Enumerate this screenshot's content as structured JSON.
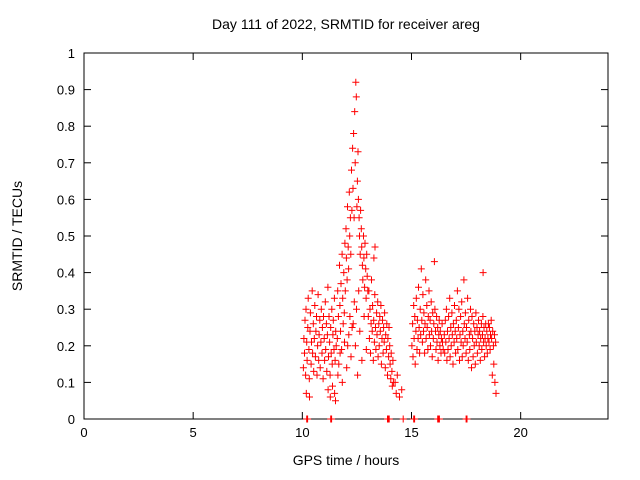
{
  "chart_data": {
    "type": "scatter",
    "title": "Day 111 of 2022, SRMTID for receiver areg",
    "xlabel": "GPS time / hours",
    "ylabel": "SRMTID / TECUs",
    "xlim": [
      0,
      24
    ],
    "ylim": [
      0,
      1
    ],
    "xticks": [
      0,
      5,
      10,
      15,
      20
    ],
    "yticks": [
      0,
      0.1,
      0.2,
      0.3,
      0.4,
      0.5,
      0.6,
      0.7,
      0.8,
      0.9,
      1
    ],
    "grid": false,
    "legend": "none",
    "marker": "plus",
    "color": "#ff0000",
    "points": [
      [
        10.05,
        0.14
      ],
      [
        10.07,
        0.22
      ],
      [
        10.1,
        0.18
      ],
      [
        10.12,
        0.27
      ],
      [
        10.15,
        0.12
      ],
      [
        10.17,
        0.3
      ],
      [
        10.18,
        0.07
      ],
      [
        10.2,
        0.21
      ],
      [
        10.22,
        0.16
      ],
      [
        10.25,
        0.25
      ],
      [
        10.27,
        0.33
      ],
      [
        10.3,
        0.19
      ],
      [
        10.32,
        0.11
      ],
      [
        10.33,
        0.06
      ],
      [
        10.35,
        0.24
      ],
      [
        10.37,
        0.29
      ],
      [
        10.4,
        0.15
      ],
      [
        10.42,
        0.21
      ],
      [
        10.45,
        0.35
      ],
      [
        10.47,
        0.18
      ],
      [
        10.5,
        0.26
      ],
      [
        10.52,
        0.13
      ],
      [
        10.55,
        0.22
      ],
      [
        10.57,
        0.31
      ],
      [
        10.6,
        0.17
      ],
      [
        10.62,
        0.24
      ],
      [
        10.65,
        0.28
      ],
      [
        10.67,
        0.12
      ],
      [
        10.7,
        0.2
      ],
      [
        10.72,
        0.34
      ],
      [
        10.75,
        0.16
      ],
      [
        10.77,
        0.23
      ],
      [
        10.8,
        0.27
      ],
      [
        10.82,
        0.14
      ],
      [
        10.85,
        0.21
      ],
      [
        10.87,
        0.3
      ],
      [
        10.9,
        0.18
      ],
      [
        10.92,
        0.25
      ],
      [
        10.95,
        0.11
      ],
      [
        10.97,
        0.28
      ],
      [
        11,
        0.22
      ],
      [
        11.02,
        0.16
      ],
      [
        11.05,
        0.32
      ],
      [
        11.07,
        0.19
      ],
      [
        11.1,
        0.26
      ],
      [
        11.12,
        0.13
      ],
      [
        11.15,
        0.23
      ],
      [
        11.17,
        0.36
      ],
      [
        11.18,
        0.08
      ],
      [
        11.2,
        0.17
      ],
      [
        11.22,
        0.28
      ],
      [
        11.25,
        0.21
      ],
      [
        11.27,
        0.12
      ],
      [
        11.28,
        0.06
      ],
      [
        11.3,
        0.25
      ],
      [
        11.32,
        0.18
      ],
      [
        11.35,
        0.3
      ],
      [
        11.37,
        0.15
      ],
      [
        11.38,
        0.09
      ],
      [
        11.4,
        0.23
      ],
      [
        11.42,
        0.27
      ],
      [
        11.45,
        0.19
      ],
      [
        11.47,
        0.33
      ],
      [
        11.48,
        0.07
      ],
      [
        11.5,
        0.16
      ],
      [
        11.52,
        0.05
      ],
      [
        11.53,
        0.24
      ],
      [
        11.55,
        0.2
      ],
      [
        11.6,
        0.22
      ],
      [
        11.62,
        0.35
      ],
      [
        11.63,
        0.12
      ],
      [
        11.65,
        0.28
      ],
      [
        11.67,
        0.15
      ],
      [
        11.7,
        0.42
      ],
      [
        11.72,
        0.31
      ],
      [
        11.73,
        0.18
      ],
      [
        11.75,
        0.24
      ],
      [
        11.77,
        0.37
      ],
      [
        11.8,
        0.19
      ],
      [
        11.82,
        0.45
      ],
      [
        11.83,
        0.1
      ],
      [
        11.85,
        0.33
      ],
      [
        11.87,
        0.26
      ],
      [
        11.9,
        0.4
      ],
      [
        11.92,
        0.29
      ],
      [
        11.93,
        0.21
      ],
      [
        11.95,
        0.48
      ],
      [
        11.97,
        0.35
      ],
      [
        12,
        0.52
      ],
      [
        12.02,
        0.44
      ],
      [
        12.03,
        0.14
      ],
      [
        12.05,
        0.38
      ],
      [
        12.07,
        0.58
      ],
      [
        12.08,
        0.2
      ],
      [
        12.1,
        0.47
      ],
      [
        12.12,
        0.41
      ],
      [
        12.13,
        0.23
      ],
      [
        12.15,
        0.62
      ],
      [
        12.17,
        0.5
      ],
      [
        12.18,
        0.28
      ],
      [
        12.2,
        0.55
      ],
      [
        12.22,
        0.45
      ],
      [
        12.23,
        0.17
      ],
      [
        12.25,
        0.68
      ],
      [
        12.27,
        0.57
      ],
      [
        12.28,
        0.25
      ],
      [
        12.3,
        0.74
      ],
      [
        12.32,
        0.63
      ],
      [
        12.33,
        0.26
      ],
      [
        12.35,
        0.78
      ],
      [
        12.37,
        0.55
      ],
      [
        12.38,
        0.32
      ],
      [
        12.4,
        0.84
      ],
      [
        12.42,
        0.7
      ],
      [
        12.43,
        0.2
      ],
      [
        12.45,
        0.92
      ],
      [
        12.47,
        0.88
      ],
      [
        12.48,
        0.3
      ],
      [
        12.5,
        0.58
      ],
      [
        12.52,
        0.65
      ],
      [
        12.53,
        0.12
      ],
      [
        12.55,
        0.73
      ],
      [
        12.57,
        0.6
      ],
      [
        12.58,
        0.35
      ],
      [
        12.6,
        0.55
      ],
      [
        12.62,
        0.5
      ],
      [
        12.63,
        0.24
      ],
      [
        12.65,
        0.45
      ],
      [
        12.67,
        0.57
      ],
      [
        12.7,
        0.52
      ],
      [
        12.72,
        0.47
      ],
      [
        12.73,
        0.16
      ],
      [
        12.75,
        0.42
      ],
      [
        12.77,
        0.38
      ],
      [
        12.8,
        0.5
      ],
      [
        12.82,
        0.44
      ],
      [
        12.83,
        0.28
      ],
      [
        12.85,
        0.36
      ],
      [
        12.87,
        0.48
      ],
      [
        12.9,
        0.41
      ],
      [
        12.92,
        0.33
      ],
      [
        12.93,
        0.19
      ],
      [
        12.95,
        0.45
      ],
      [
        12.97,
        0.39
      ],
      [
        13,
        0.35
      ],
      [
        13.02,
        0.28
      ],
      [
        13.05,
        0.35
      ],
      [
        13.07,
        0.22
      ],
      [
        13.1,
        0.3
      ],
      [
        13.12,
        0.18
      ],
      [
        13.15,
        0.26
      ],
      [
        13.17,
        0.38
      ],
      [
        13.2,
        0.24
      ],
      [
        13.22,
        0.31
      ],
      [
        13.25,
        0.16
      ],
      [
        13.27,
        0.27
      ],
      [
        13.28,
        0.44
      ],
      [
        13.3,
        0.21
      ],
      [
        13.32,
        0.34
      ],
      [
        13.33,
        0.47
      ],
      [
        13.35,
        0.25
      ],
      [
        13.37,
        0.19
      ],
      [
        13.4,
        0.29
      ],
      [
        13.42,
        0.23
      ],
      [
        13.45,
        0.32
      ],
      [
        13.47,
        0.17
      ],
      [
        13.5,
        0.26
      ],
      [
        13.52,
        0.2
      ],
      [
        13.55,
        0.28
      ],
      [
        13.57,
        0.24
      ],
      [
        13.6,
        0.31
      ],
      [
        13.62,
        0.15
      ],
      [
        13.65,
        0.22
      ],
      [
        13.67,
        0.27
      ],
      [
        13.7,
        0.18
      ],
      [
        13.72,
        0.25
      ],
      [
        13.75,
        0.21
      ],
      [
        13.77,
        0.29
      ],
      [
        13.8,
        0.14
      ],
      [
        13.82,
        0.23
      ],
      [
        13.85,
        0.19
      ],
      [
        13.87,
        0.26
      ],
      [
        13.9,
        0.12
      ],
      [
        13.92,
        0.22
      ],
      [
        13.95,
        0.17
      ],
      [
        13.97,
        0.25
      ],
      [
        14,
        0.2
      ],
      [
        14.02,
        0.15
      ],
      [
        14.05,
        0.11
      ],
      [
        14.07,
        0.18
      ],
      [
        14.1,
        0.13
      ],
      [
        14.12,
        0.09
      ],
      [
        14.15,
        0.16
      ],
      [
        14.17,
        0.1
      ],
      [
        14.25,
        0.1
      ],
      [
        14.3,
        0.07
      ],
      [
        14.35,
        0.12
      ],
      [
        14.45,
        0.06
      ],
      [
        14.55,
        0.08
      ],
      [
        15.02,
        0.2
      ],
      [
        15.05,
        0.26
      ],
      [
        15.07,
        0.17
      ],
      [
        15.1,
        0.31
      ],
      [
        15.12,
        0.22
      ],
      [
        15.15,
        0.28
      ],
      [
        15.17,
        0.15
      ],
      [
        15.2,
        0.24
      ],
      [
        15.22,
        0.33
      ],
      [
        15.25,
        0.19
      ],
      [
        15.27,
        0.27
      ],
      [
        15.3,
        0.22
      ],
      [
        15.32,
        0.36
      ],
      [
        15.35,
        0.25
      ],
      [
        15.37,
        0.18
      ],
      [
        15.4,
        0.3
      ],
      [
        15.42,
        0.23
      ],
      [
        15.45,
        0.41
      ],
      [
        15.47,
        0.27
      ],
      [
        15.5,
        0.21
      ],
      [
        15.52,
        0.34
      ],
      [
        15.55,
        0.24
      ],
      [
        15.57,
        0.29
      ],
      [
        15.6,
        0.18
      ],
      [
        15.62,
        0.26
      ],
      [
        15.65,
        0.38
      ],
      [
        15.67,
        0.22
      ],
      [
        15.7,
        0.31
      ],
      [
        15.72,
        0.25
      ],
      [
        15.75,
        0.19
      ],
      [
        15.77,
        0.28
      ],
      [
        15.8,
        0.35
      ],
      [
        15.82,
        0.23
      ],
      [
        15.85,
        0.27
      ],
      [
        15.87,
        0.2
      ],
      [
        15.9,
        0.32
      ],
      [
        15.92,
        0.24
      ],
      [
        15.95,
        0.17
      ],
      [
        15.97,
        0.29
      ],
      [
        16,
        0.22
      ],
      [
        16.02,
        0.26
      ],
      [
        16.05,
        0.43
      ],
      [
        16.07,
        0.3
      ],
      [
        16.1,
        0.24
      ],
      [
        16.12,
        0.19
      ],
      [
        16.15,
        0.28
      ],
      [
        16.17,
        0.21
      ],
      [
        16.2,
        0.25
      ],
      [
        16.22,
        0.16
      ],
      [
        16.25,
        0.23
      ],
      [
        16.27,
        0.27
      ],
      [
        16.3,
        0.2
      ],
      [
        16.32,
        0.24
      ],
      [
        16.35,
        0.18
      ],
      [
        16.37,
        0.22
      ],
      [
        16.4,
        0.26
      ],
      [
        16.42,
        0.21
      ],
      [
        16.45,
        0.19
      ],
      [
        16.5,
        0.23
      ],
      [
        16.52,
        0.18
      ],
      [
        16.55,
        0.27
      ],
      [
        16.57,
        0.21
      ],
      [
        16.6,
        0.3
      ],
      [
        16.62,
        0.16
      ],
      [
        16.65,
        0.24
      ],
      [
        16.67,
        0.19
      ],
      [
        16.7,
        0.28
      ],
      [
        16.72,
        0.22
      ],
      [
        16.75,
        0.33
      ],
      [
        16.77,
        0.17
      ],
      [
        16.8,
        0.25
      ],
      [
        16.82,
        0.2
      ],
      [
        16.85,
        0.29
      ],
      [
        16.87,
        0.23
      ],
      [
        16.9,
        0.15
      ],
      [
        16.92,
        0.26
      ],
      [
        16.95,
        0.21
      ],
      [
        16.97,
        0.31
      ],
      [
        17,
        0.24
      ],
      [
        17.02,
        0.18
      ],
      [
        17.05,
        0.27
      ],
      [
        17.07,
        0.22
      ],
      [
        17.1,
        0.35
      ],
      [
        17.12,
        0.19
      ],
      [
        17.15,
        0.25
      ],
      [
        17.17,
        0.3
      ],
      [
        17.2,
        0.16
      ],
      [
        17.22,
        0.23
      ],
      [
        17.25,
        0.28
      ],
      [
        17.27,
        0.21
      ],
      [
        17.3,
        0.32
      ],
      [
        17.32,
        0.17
      ],
      [
        17.35,
        0.24
      ],
      [
        17.37,
        0.2
      ],
      [
        17.4,
        0.38
      ],
      [
        17.42,
        0.26
      ],
      [
        17.45,
        0.22
      ],
      [
        17.47,
        0.29
      ],
      [
        17.5,
        0.18
      ],
      [
        17.52,
        0.25
      ],
      [
        17.55,
        0.21
      ],
      [
        17.57,
        0.33
      ],
      [
        17.6,
        0.16
      ],
      [
        17.62,
        0.27
      ],
      [
        17.65,
        0.23
      ],
      [
        17.67,
        0.19
      ],
      [
        17.7,
        0.3
      ],
      [
        17.72,
        0.24
      ],
      [
        17.75,
        0.14
      ],
      [
        17.77,
        0.28
      ],
      [
        17.8,
        0.22
      ],
      [
        17.82,
        0.17
      ],
      [
        17.85,
        0.26
      ],
      [
        17.87,
        0.2
      ],
      [
        17.9,
        0.24
      ],
      [
        17.92,
        0.15
      ],
      [
        17.95,
        0.29
      ],
      [
        17.97,
        0.21
      ],
      [
        18,
        0.25
      ],
      [
        18.02,
        0.18
      ],
      [
        18.05,
        0.23
      ],
      [
        18.07,
        0.27
      ],
      [
        18.1,
        0.2
      ],
      [
        18.12,
        0.24
      ],
      [
        18.15,
        0.16
      ],
      [
        18.17,
        0.22
      ],
      [
        18.2,
        0.26
      ],
      [
        18.22,
        0.19
      ],
      [
        18.25,
        0.23
      ],
      [
        18.27,
        0.28
      ],
      [
        18.28,
        0.4
      ],
      [
        18.3,
        0.21
      ],
      [
        18.32,
        0.25
      ],
      [
        18.35,
        0.17
      ],
      [
        18.37,
        0.22
      ],
      [
        18.4,
        0.26
      ],
      [
        18.42,
        0.2
      ],
      [
        18.45,
        0.24
      ],
      [
        18.47,
        0.18
      ],
      [
        18.5,
        0.22
      ],
      [
        18.52,
        0.26
      ],
      [
        18.55,
        0.21
      ],
      [
        18.57,
        0.25
      ],
      [
        18.6,
        0.19
      ],
      [
        18.62,
        0.23
      ],
      [
        18.65,
        0.27
      ],
      [
        18.67,
        0.22
      ],
      [
        18.7,
        0.12
      ],
      [
        18.72,
        0.24
      ],
      [
        18.75,
        0.2
      ],
      [
        18.77,
        0.15
      ],
      [
        18.8,
        0.23
      ],
      [
        18.82,
        0.1
      ],
      [
        18.85,
        0.21
      ],
      [
        18.87,
        0.07
      ],
      [
        10.2,
        0
      ],
      [
        10.24,
        0
      ],
      [
        11.3,
        0
      ],
      [
        11.34,
        0
      ],
      [
        13.9,
        0
      ],
      [
        13.94,
        0
      ],
      [
        13.98,
        0
      ],
      [
        14.62,
        0
      ],
      [
        15.1,
        0
      ],
      [
        15.14,
        0
      ],
      [
        16.2,
        0
      ],
      [
        16.24,
        0
      ],
      [
        16.28,
        0
      ],
      [
        17.5,
        0
      ],
      [
        17.54,
        0
      ]
    ]
  }
}
